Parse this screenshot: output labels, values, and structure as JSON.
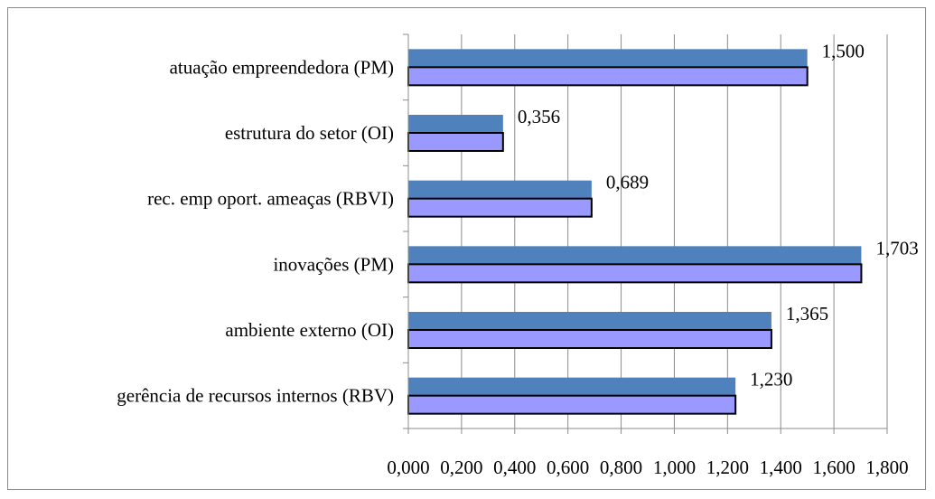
{
  "chart_data": {
    "type": "bar",
    "orientation": "horizontal",
    "categories": [
      "atuação empreendedora (PM)",
      "estrutura do setor (OI)",
      "rec. emp oport. ameaças (RBVI)",
      "inovações (PM)",
      "ambiente externo (OI)",
      "gerência de recursos internos (RBV)"
    ],
    "series": [
      {
        "values": [
          1.5,
          0.356,
          0.689,
          1.703,
          1.365,
          1.23
        ],
        "color": "#4f81bd"
      },
      {
        "values": [
          1.5,
          0.356,
          0.689,
          1.703,
          1.365,
          1.23
        ],
        "color": "#9999ff"
      }
    ],
    "data_labels": [
      "1,500",
      "0,356",
      "0,689",
      "1,703",
      "1,365",
      "1,230"
    ],
    "xlim": [
      0,
      1.8
    ],
    "xticks": [
      0,
      0.2,
      0.4,
      0.6,
      0.8,
      1.0,
      1.2,
      1.4,
      1.6,
      1.8
    ],
    "xtick_labels": [
      "0,000",
      "0,200",
      "0,400",
      "0,600",
      "0,800",
      "1,000",
      "1,200",
      "1,400",
      "1,600",
      "1,800"
    ],
    "grid": true,
    "legend": "none",
    "title": "",
    "xlabel": "",
    "ylabel": ""
  }
}
